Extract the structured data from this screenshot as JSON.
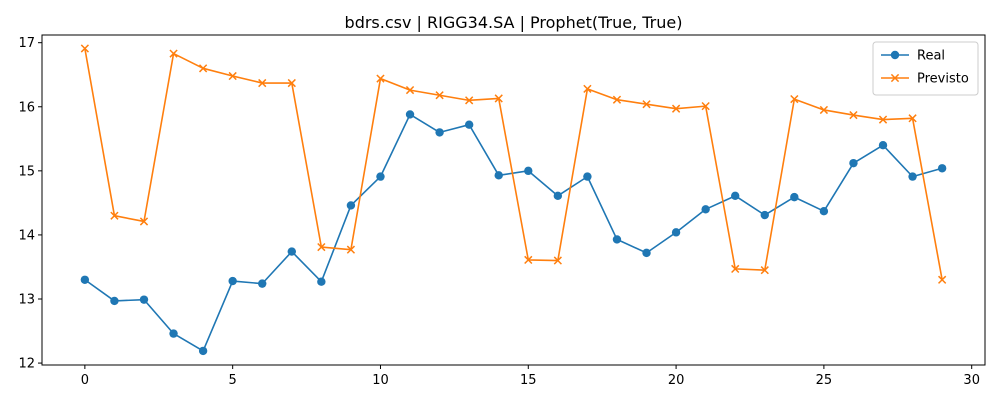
{
  "chart_data": {
    "type": "line",
    "title": "bdrs.csv | RIGG34.SA | Prophet(True, True)",
    "xlabel": "",
    "ylabel": "",
    "xlim": [
      -1.45,
      30.45
    ],
    "ylim": [
      11.97,
      17.12
    ],
    "xticks": [
      0,
      5,
      10,
      15,
      20,
      25,
      30
    ],
    "yticks": [
      12,
      13,
      14,
      15,
      16,
      17
    ],
    "grid": false,
    "legend_position": "top-right",
    "x": [
      0,
      1,
      2,
      3,
      4,
      5,
      6,
      7,
      8,
      9,
      10,
      11,
      12,
      13,
      14,
      15,
      16,
      17,
      18,
      19,
      20,
      21,
      22,
      23,
      24,
      25,
      26,
      27,
      28,
      29
    ],
    "series": [
      {
        "name": "Real",
        "color": "#1f77b4",
        "marker": "circle",
        "values": [
          13.3,
          12.97,
          12.99,
          12.46,
          12.19,
          13.28,
          13.24,
          13.74,
          13.27,
          14.46,
          14.91,
          15.88,
          15.6,
          15.72,
          14.93,
          15.0,
          14.61,
          14.91,
          13.93,
          13.72,
          14.04,
          14.4,
          14.61,
          14.31,
          14.59,
          14.37,
          15.12,
          15.4,
          14.91,
          15.04
        ]
      },
      {
        "name": "Previsto",
        "color": "#ff7f0e",
        "marker": "x",
        "values": [
          16.91,
          14.3,
          14.21,
          16.83,
          16.6,
          16.48,
          16.37,
          16.37,
          13.81,
          13.77,
          16.44,
          16.26,
          16.18,
          16.1,
          16.13,
          13.61,
          13.6,
          16.28,
          16.11,
          16.04,
          15.97,
          16.01,
          13.47,
          13.45,
          16.12,
          15.95,
          15.87,
          15.8,
          15.82,
          13.3
        ]
      }
    ]
  }
}
